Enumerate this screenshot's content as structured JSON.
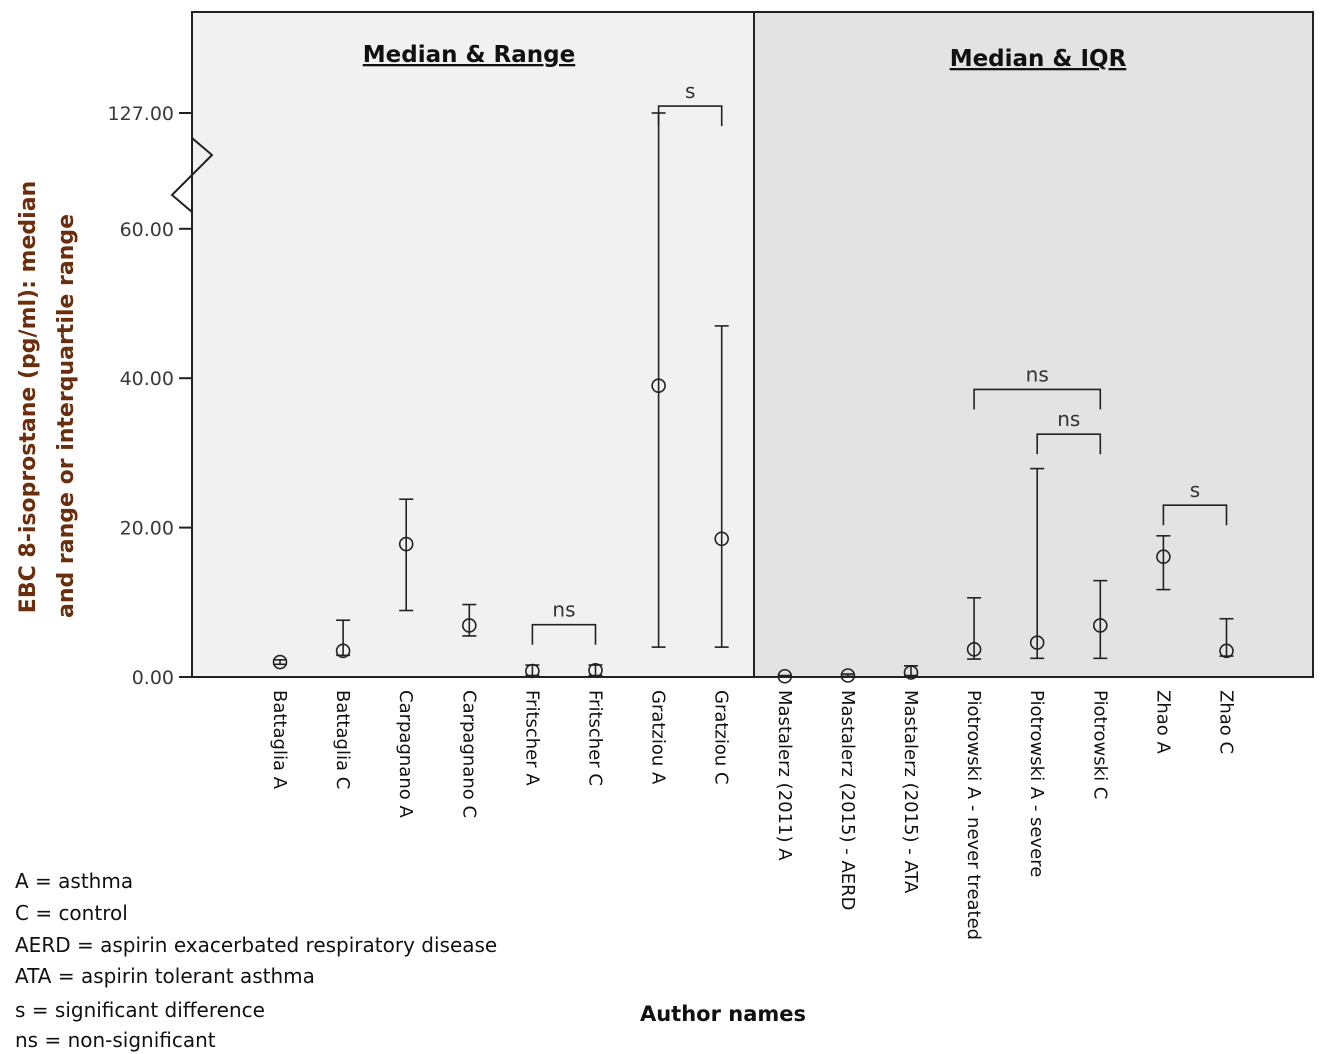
{
  "chart_data": {
    "type": "scatter",
    "subtype": "median with error bars (range / IQR), broken y-axis",
    "ylabel_lines": [
      "EBC 8-isoprostane (pg/ml): median",
      "and range or interquartile range"
    ],
    "xlabel": "Author names",
    "y_ticks": [
      "0.00",
      "20.00",
      "40.00",
      "60.00",
      "127.00"
    ],
    "y_break": {
      "below": 60,
      "above": 127
    },
    "panels": [
      {
        "title": "Median & Range",
        "background": "#f1f1f1"
      },
      {
        "title": "Median & IQR",
        "background": "#e3e3e3"
      }
    ],
    "categories": [
      "Battaglia A",
      "Battaglia C",
      "Carpagnano A",
      "Carpagnano C",
      "Fritscher A",
      "Fritscher C",
      "Gratziou A",
      "Gratziou C",
      "Mastalerz (2011) A",
      "Mastalerz (2015) - AERD",
      "Mastalerz (2015) - ATA",
      "Piotrowski A - never treated",
      "Piotrowski A - severe",
      "Piotrowski C",
      "Zhao A",
      "Zhao C"
    ],
    "series": [
      {
        "median": [
          2.0,
          3.5,
          17.8,
          6.9,
          0.8,
          0.9,
          39.0,
          18.5,
          0.1,
          0.2,
          0.6,
          3.7,
          4.6,
          6.9,
          16.1,
          3.5
        ],
        "low": [
          1.7,
          2.9,
          8.9,
          5.5,
          0.2,
          0.2,
          4.0,
          4.0,
          0.05,
          0.1,
          0.2,
          2.4,
          2.5,
          2.5,
          11.7,
          2.8
        ],
        "high": [
          2.3,
          7.6,
          23.8,
          9.7,
          1.6,
          1.6,
          127.0,
          47.0,
          0.2,
          0.4,
          1.5,
          10.6,
          27.9,
          12.9,
          18.9,
          7.8
        ]
      }
    ],
    "comparisons": [
      {
        "from": "Fritscher A",
        "to": "Fritscher C",
        "label": "ns",
        "level": 7.0
      },
      {
        "from": "Gratziou A",
        "to": "Gratziou C",
        "label": "s",
        "level": 131.0
      },
      {
        "from": "Piotrowski A - never treated",
        "to": "Piotrowski C",
        "label": "ns",
        "level": 38.5
      },
      {
        "from": "Piotrowski A - severe",
        "to": "Piotrowski C",
        "label": "ns",
        "level": 32.5
      },
      {
        "from": "Zhao A",
        "to": "Zhao C",
        "label": "s",
        "level": 23.0
      }
    ]
  },
  "legend_notes": [
    "A = asthma",
    "C = control",
    "AERD = aspirin exacerbated respiratory disease",
    "ATA = aspirin tolerant asthma",
    "s = significant difference",
    "ns = non-significant"
  ]
}
